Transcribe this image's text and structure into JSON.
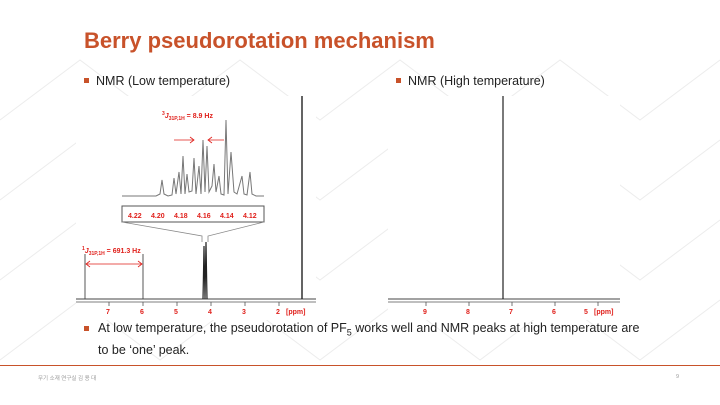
{
  "slide": {
    "title": "Berry pseudorotation mechanism",
    "left_heading": "NMR (Low temperature)",
    "right_heading": "NMR (High temperature)",
    "body_prefix": "At low temperature, the pseudorotation of PF",
    "body_sub": "5",
    "body_suffix": " works well and NMR peaks at high temperature are to be ‘one’ peak.",
    "footer_left": "무기 소재 연구실    김 용 대",
    "page_number": "9"
  },
  "low_spectrum": {
    "axis_ticks": [
      "7",
      "6",
      "5",
      "4",
      "3",
      "2"
    ],
    "axis_unit": "[ppm]",
    "inset_ticks": [
      "4.22",
      "4.20",
      "4.18",
      "4.16",
      "4.14",
      "4.12"
    ],
    "coupling3_sup": "3",
    "coupling3_j": "J",
    "coupling3_sub": "31P,1H",
    "coupling3_value": " = 8.9 Hz",
    "coupling1_sup": "1",
    "coupling1_j": "J",
    "coupling1_sub": "31P,1H",
    "coupling1_value": " = 691.3 Hz"
  },
  "high_spectrum": {
    "axis_ticks": [
      "9",
      "8",
      "7",
      "6",
      "5"
    ],
    "axis_unit": "[ppm]"
  },
  "colors": {
    "accent": "#c8522a",
    "annotation_red": "#e0201b"
  }
}
